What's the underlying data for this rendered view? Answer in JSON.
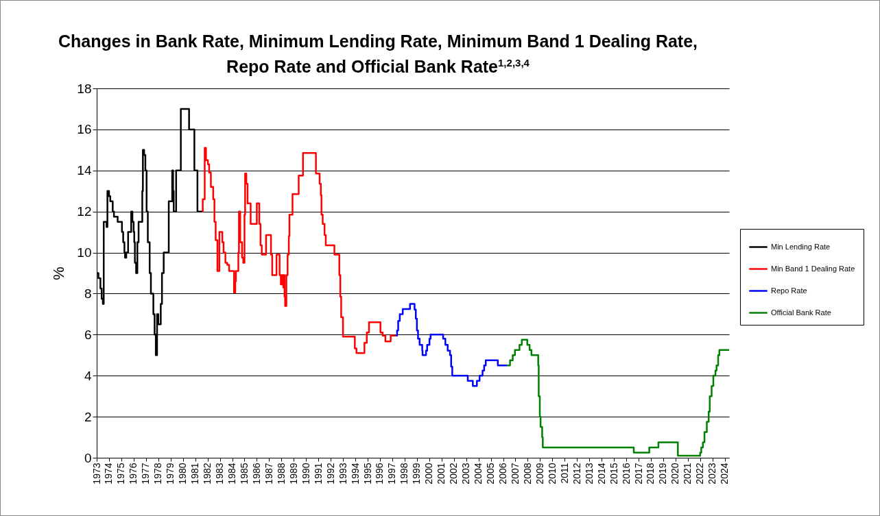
{
  "chart_data": {
    "type": "step",
    "title": "Changes in Bank Rate, Minimum Lending Rate, Minimum Band 1 Dealing Rate, Repo Rate and Official Bank Rate$^{1,2,3,4}$",
    "ylabel": "%",
    "xlim": [
      1973,
      2024.35
    ],
    "xticks": [
      1973,
      1974,
      1975,
      1976,
      1977,
      1978,
      1979,
      1980,
      1981,
      1982,
      1983,
      1984,
      1985,
      1986,
      1987,
      1988,
      1989,
      1990,
      1991,
      1992,
      1993,
      1994,
      1995,
      1996,
      1997,
      1998,
      1999,
      2000,
      2001,
      2002,
      2003,
      2004,
      2005,
      2006,
      2007,
      2008,
      2009,
      2010,
      2011,
      2012,
      2013,
      2014,
      2015,
      2016,
      2017,
      2018,
      2019,
      2020,
      2021,
      2022,
      2023,
      2024
    ],
    "ylim": [
      0,
      18
    ],
    "yticks": [
      0,
      2,
      4,
      6,
      8,
      10,
      12,
      14,
      16,
      18
    ],
    "grid": "y",
    "legend": "right",
    "line_style": "solid",
    "series": [
      {
        "name": "Min Lending Rate",
        "color": "#000000",
        "x": [
          1973,
          1973.14,
          1973.3,
          1973.4,
          1973.5,
          1973.57,
          1973.8,
          1973.87,
          1974.0,
          1974.1,
          1974.3,
          1974.4,
          1974.7,
          1975.05,
          1975.15,
          1975.25,
          1975.3,
          1975.4,
          1975.55,
          1975.8,
          1975.9,
          1976.0,
          1976.05,
          1976.1,
          1976.2,
          1976.3,
          1976.4,
          1976.7,
          1976.75,
          1976.85,
          1976.95,
          1977.05,
          1977.15,
          1977.3,
          1977.4,
          1977.6,
          1977.7,
          1977.8,
          1977.9,
          1978.0,
          1978.2,
          1978.3,
          1978.44,
          1978.85,
          1979.13,
          1979.2,
          1979.25,
          1979.45,
          1979.83,
          1980.5,
          1980.93,
          1981.18,
          1981.57
        ],
        "values": [
          9,
          8.75,
          8.25,
          7.75,
          7.5,
          11.5,
          11.25,
          13,
          12.75,
          12.5,
          12,
          11.75,
          11.5,
          11,
          10.5,
          10,
          9.75,
          10,
          11,
          12,
          11.5,
          11,
          10.5,
          9.5,
          9,
          10.5,
          11.5,
          13,
          15,
          14.75,
          14,
          12,
          10.5,
          9,
          8,
          7,
          6,
          5,
          7,
          6.5,
          7.5,
          9,
          10,
          12.5,
          14,
          13,
          12,
          14,
          17,
          16,
          14,
          12,
          12
        ]
      },
      {
        "name": "Min Band 1 Dealing Rate",
        "color": "#ff0000",
        "x": [
          1981.57,
          1981.61,
          1981.77,
          1981.87,
          1982.03,
          1982.13,
          1982.27,
          1982.46,
          1982.56,
          1982.66,
          1982.8,
          1982.96,
          1983.2,
          1983.3,
          1983.45,
          1983.6,
          1983.75,
          1984.15,
          1984.25,
          1984.3,
          1984.5,
          1984.55,
          1984.65,
          1984.8,
          1984.9,
          1985.0,
          1985.05,
          1985.15,
          1985.25,
          1985.5,
          1986.0,
          1986.2,
          1986.3,
          1986.4,
          1986.75,
          1987.15,
          1987.25,
          1987.6,
          1987.85,
          1987.95,
          1988.05,
          1988.15,
          1988.2,
          1988.25,
          1988.3,
          1988.4,
          1988.5,
          1988.6,
          1988.65,
          1988.9,
          1989.4,
          1989.75,
          1990.8,
          1991.1,
          1991.2,
          1991.25,
          1991.35,
          1991.5,
          1991.6,
          1992.3,
          1992.7,
          1992.78,
          1992.85,
          1993.0,
          1993.96,
          1994.09,
          1994.74,
          1994.93,
          1995.11,
          1996.04,
          1996.22,
          1996.44,
          1996.87,
          1997.3
        ],
        "values": [
          12,
          12.6,
          15.1,
          14.5,
          14.3,
          13.9,
          13.2,
          12.6,
          11.5,
          10.6,
          9.1,
          11,
          10.5,
          10,
          9.5,
          9.4,
          9.1,
          8.05,
          8.6,
          9.1,
          10,
          12,
          10.5,
          9.75,
          9.5,
          11.85,
          13.85,
          13.35,
          12.4,
          11.4,
          12.4,
          11.4,
          10.35,
          9.9,
          10.85,
          9.9,
          8.9,
          9.9,
          8.9,
          8.45,
          8.9,
          8.3,
          8.9,
          7.85,
          7.4,
          8.9,
          9.9,
          10.8,
          11.85,
          12.85,
          13.75,
          14.85,
          13.85,
          13.35,
          12.8,
          11.85,
          11.4,
          10.85,
          10.35,
          9.9,
          8.9,
          7.85,
          6.85,
          5.9,
          5.33,
          5.1,
          5.6,
          6.1,
          6.6,
          6.1,
          5.95,
          5.67,
          5.95,
          5.95
        ]
      },
      {
        "name": "Repo Rate",
        "color": "#0000ff",
        "x": [
          1997.3,
          1997.39,
          1997.48,
          1997.61,
          1997.85,
          1998.44,
          1998.81,
          1998.91,
          1999.0,
          1999.09,
          1999.22,
          1999.43,
          1999.46,
          1999.74,
          1999.83,
          2000.02,
          2000.11,
          2001.13,
          2001.31,
          2001.5,
          2001.69,
          2001.78,
          2001.87,
          2003.13,
          2003.54,
          2003.87,
          2004.09,
          2004.33,
          2004.46,
          2004.59,
          2005.57,
          2006.31
        ],
        "values": [
          5.95,
          6.2,
          6.67,
          7.0,
          7.25,
          7.5,
          7.22,
          6.78,
          6.2,
          5.8,
          5.5,
          5.22,
          5.0,
          5.22,
          5.5,
          5.8,
          6.0,
          5.8,
          5.5,
          5.22,
          5.0,
          4.44,
          4.0,
          3.75,
          3.5,
          3.75,
          4.0,
          4.25,
          4.5,
          4.75,
          4.5,
          4.5
        ]
      },
      {
        "name": "Official Bank Rate",
        "color": "#008000",
        "x": [
          2006.31,
          2006.56,
          2006.78,
          2006.96,
          2007.33,
          2007.52,
          2007.96,
          2008.15,
          2008.3,
          2008.85,
          2008.89,
          2008.98,
          2009.04,
          2009.17,
          2009.22,
          2016.61,
          2017.87,
          2018.61,
          2020.19,
          2022.0,
          2022.09,
          2022.22,
          2022.35,
          2022.54,
          2022.69,
          2022.78,
          2022.93,
          2023.07,
          2023.24,
          2023.33,
          2023.46,
          2023.56,
          2024.35
        ],
        "values": [
          4.5,
          4.75,
          5,
          5.25,
          5.5,
          5.75,
          5.5,
          5.25,
          5,
          4.5,
          3,
          2,
          1.5,
          1,
          0.5,
          0.25,
          0.5,
          0.75,
          0.1,
          0.25,
          0.5,
          0.75,
          1.25,
          1.75,
          2.25,
          3,
          3.5,
          4,
          4.25,
          4.5,
          5,
          5.25,
          5.25
        ]
      }
    ]
  }
}
